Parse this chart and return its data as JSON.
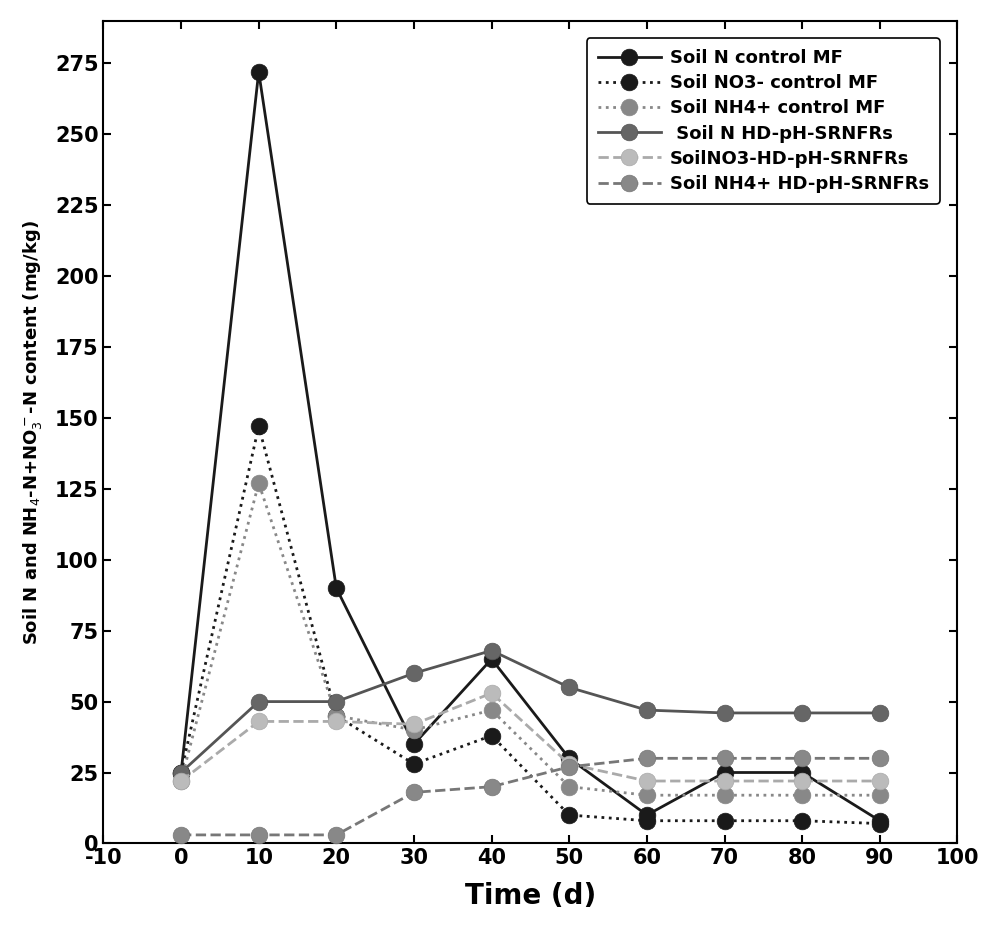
{
  "series": [
    {
      "label": "Soil N control MF",
      "x": [
        0,
        10,
        20,
        30,
        40,
        50,
        60,
        70,
        80,
        90
      ],
      "y": [
        25,
        272,
        90,
        35,
        65,
        30,
        10,
        25,
        25,
        8
      ],
      "color": "#1a1a1a",
      "linestyle": "-",
      "linewidth": 2.0,
      "markersize": 12,
      "markerfacecolor": "#1a1a1a",
      "markeredgecolor": "#1a1a1a"
    },
    {
      "label": "Soil NO3- control MF",
      "x": [
        0,
        10,
        20,
        30,
        40,
        50,
        60,
        70,
        80,
        90
      ],
      "y": [
        25,
        147,
        45,
        28,
        38,
        10,
        8,
        8,
        8,
        7
      ],
      "color": "#1a1a1a",
      "linestyle": ":",
      "linewidth": 2.0,
      "markersize": 12,
      "markerfacecolor": "#1a1a1a",
      "markeredgecolor": "#1a1a1a"
    },
    {
      "label": "Soil NH4+ control MF",
      "x": [
        0,
        10,
        20,
        30,
        40,
        50,
        60,
        70,
        80,
        90
      ],
      "y": [
        22,
        127,
        45,
        40,
        47,
        20,
        17,
        17,
        17,
        17
      ],
      "color": "#888888",
      "linestyle": ":",
      "linewidth": 2.0,
      "markersize": 12,
      "markerfacecolor": "#888888",
      "markeredgecolor": "#888888"
    },
    {
      "label": " Soil N HD-pH-SRNFRs",
      "x": [
        0,
        10,
        20,
        30,
        40,
        50,
        60,
        70,
        80,
        90
      ],
      "y": [
        25,
        50,
        50,
        60,
        68,
        55,
        47,
        46,
        46,
        46
      ],
      "color": "#555555",
      "linestyle": "-",
      "linewidth": 2.0,
      "markersize": 12,
      "markerfacecolor": "#666666",
      "markeredgecolor": "#555555"
    },
    {
      "label": "SoilNO3-HD-pH-SRNFRs",
      "x": [
        0,
        10,
        20,
        30,
        40,
        50,
        60,
        70,
        80,
        90
      ],
      "y": [
        22,
        43,
        43,
        42,
        53,
        28,
        22,
        22,
        22,
        22
      ],
      "color": "#aaaaaa",
      "linestyle": "--",
      "linewidth": 2.0,
      "markersize": 12,
      "markerfacecolor": "#bbbbbb",
      "markeredgecolor": "#aaaaaa"
    },
    {
      "label": "Soil NH4+ HD-pH-SRNFRs",
      "x": [
        0,
        10,
        20,
        30,
        40,
        50,
        60,
        70,
        80,
        90
      ],
      "y": [
        3,
        3,
        3,
        18,
        20,
        27,
        30,
        30,
        30,
        30
      ],
      "color": "#777777",
      "linestyle": "--",
      "linewidth": 2.0,
      "markersize": 12,
      "markerfacecolor": "#888888",
      "markeredgecolor": "#777777"
    }
  ],
  "xlabel": "Time (d)",
  "ylabel": "Soil N and NH$_4$-N+NO$_3^-$-N content (mg/kg)",
  "xlim": [
    -10,
    100
  ],
  "ylim": [
    0,
    290
  ],
  "xticks": [
    -10,
    0,
    10,
    20,
    30,
    40,
    50,
    60,
    70,
    80,
    90,
    100
  ],
  "xtick_labels": [
    "-10",
    "0",
    "10",
    "20",
    "30",
    "40",
    "50",
    "60",
    "70",
    "80",
    "90",
    "100"
  ],
  "yticks": [
    0,
    25,
    50,
    75,
    100,
    125,
    150,
    175,
    200,
    225,
    250,
    275
  ],
  "background_color": "#ffffff",
  "figsize": [
    10.0,
    9.31
  ],
  "dpi": 100,
  "legend_fontsize": 13,
  "tick_fontsize": 15,
  "xlabel_fontsize": 20,
  "ylabel_fontsize": 13
}
